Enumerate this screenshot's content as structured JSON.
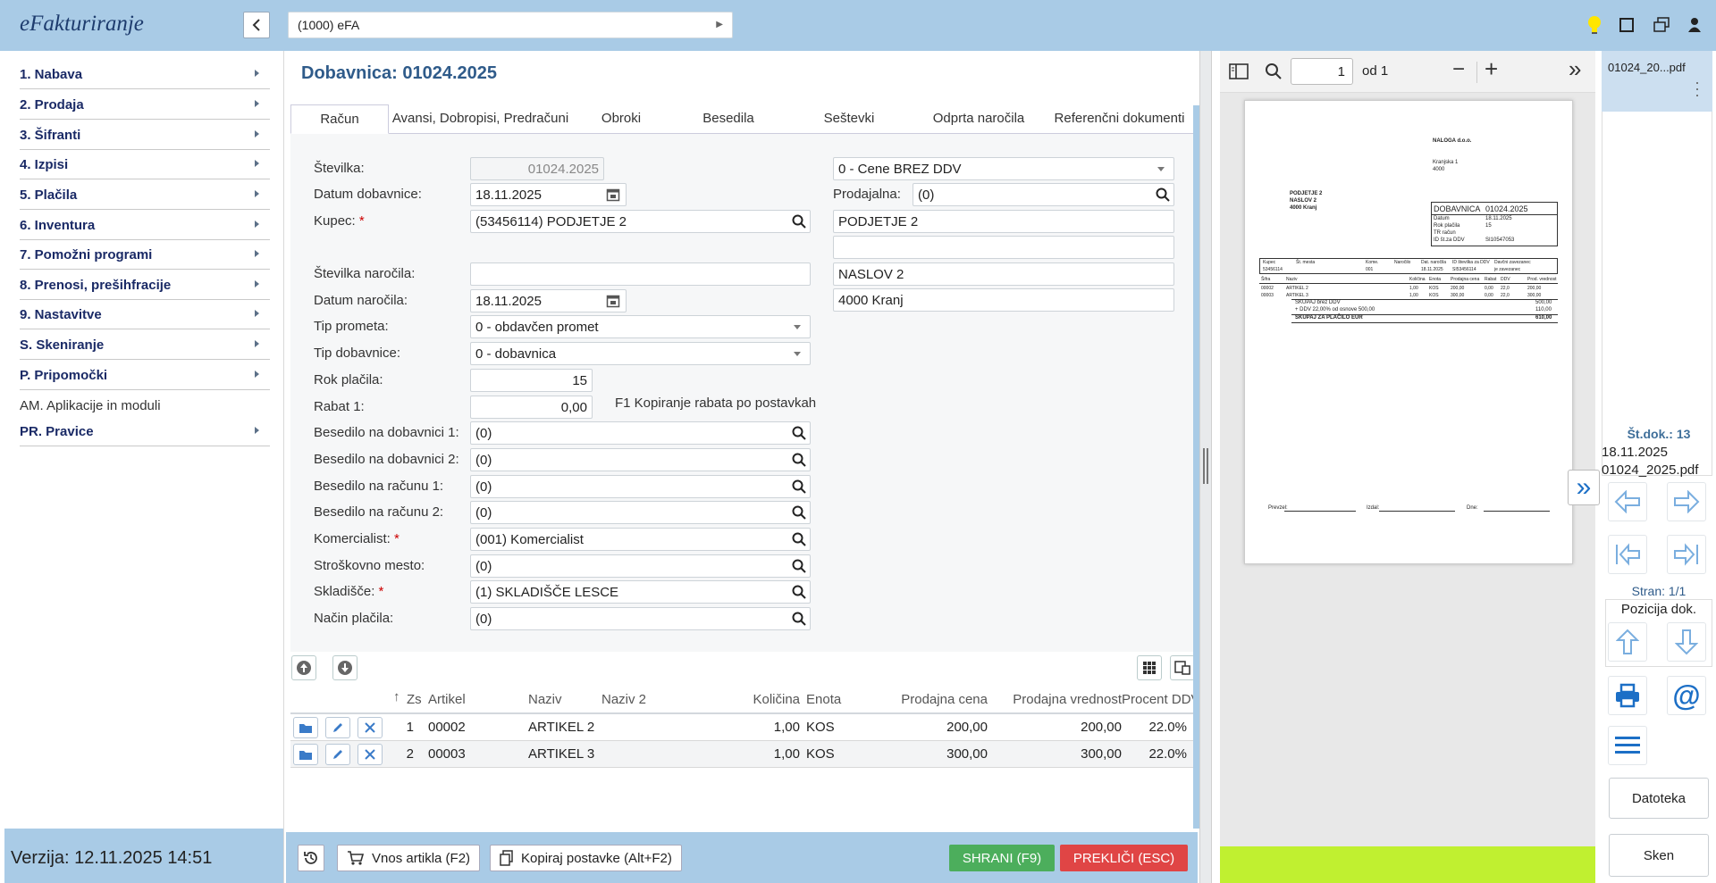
{
  "app": {
    "title": "eFakturiranje",
    "company": "(1000) eFA",
    "version": "Verzija: 12.11.2025 14:51"
  },
  "menu": [
    {
      "label": "1. Nabava",
      "arrow": true
    },
    {
      "label": "2. Prodaja",
      "arrow": true
    },
    {
      "label": "3. Šifranti",
      "arrow": true
    },
    {
      "label": "4. Izpisi",
      "arrow": true
    },
    {
      "label": "5. Plačila",
      "arrow": true
    },
    {
      "label": "6. Inventura",
      "arrow": true
    },
    {
      "label": "7. Pomožni programi",
      "arrow": true
    },
    {
      "label": "8. Prenosi, preših​fracije",
      "arrow": true
    },
    {
      "label": "9. Nastavitve",
      "arrow": true
    },
    {
      "label": "S. Skeniranje",
      "arrow": true
    },
    {
      "label": "P. Pripomočki",
      "arrow": true
    },
    {
      "label": "AM. Aplikacije in moduli",
      "arrow": false
    },
    {
      "label": "PR. Pravice",
      "arrow": true
    }
  ],
  "doc": {
    "title": "Dobavnica: 01024.2025"
  },
  "tabs": [
    "Račun",
    "Avansi, Dobropisi, Predračuni",
    "Obroki",
    "Besedila",
    "Seštevki",
    "Odprta naročila",
    "Referenčni dokumenti"
  ],
  "form": {
    "stevilka_label": "Številka:",
    "stevilka": "01024.2025",
    "datum_dob_label": "Datum dobavnice:",
    "datum_dob": "18.11.2025",
    "kupec_label": "Kupec:",
    "kupec": "(53456114) PODJETJE 2",
    "st_narocila_label": "Številka naročila:",
    "st_narocila": "",
    "datum_nar_label": "Datum naročila:",
    "datum_nar": "18.11.2025",
    "tip_prometa_label": "Tip prometa:",
    "tip_prometa": "0 - obdavčen promet",
    "tip_dob_label": "Tip dobavnice:",
    "tip_dob": "0 - dobavnica",
    "rok_label": "Rok plačila:",
    "rok": "15",
    "rabat_label": "Rabat 1:",
    "rabat": "0,00",
    "rabat_hint": "F1 Kopiranje rabata po postavkah",
    "bes_dob1_label": "Besedilo na dobavnici 1:",
    "bes_dob1": "(0)",
    "bes_dob2_label": "Besedilo na dobavnici 2:",
    "bes_dob2": "(0)",
    "bes_rac1_label": "Besedilo na računu 1:",
    "bes_rac1": "(0)",
    "bes_rac2_label": "Besedilo na računu 2:",
    "bes_rac2": "(0)",
    "komerc_label": "Komercialist:",
    "komerc": "(001)  Komercialist",
    "strosk_label": "Stroškovno mesto:",
    "strosk": "(0)",
    "sklad_label": "Skladišče:",
    "sklad": "(1) SKLADIŠČE LESCE",
    "nacin_label": "Način plačila:",
    "nacin": "(0)",
    "cene": "0 - Cene BREZ DDV",
    "prodajalna_label": "Prodajalna:",
    "prodajalna": "(0)",
    "naziv1": "PODJETJE 2",
    "naziv2": "",
    "naslov": "NASLOV 2",
    "posta": "4000 Kranj"
  },
  "grid": {
    "headers": [
      "Zs",
      "Artikel",
      "Naziv",
      "Naziv 2",
      "Količina",
      "Enota",
      "Prodajna cena",
      "Prodajna vrednost",
      "Procent DDV"
    ],
    "rows": [
      {
        "zs": "1",
        "artikel": "00002",
        "naziv": "ARTIKEL 2",
        "naziv2": "",
        "kolicina": "1,00",
        "enota": "KOS",
        "cena": "200,00",
        "vrednost": "200,00",
        "ddv": "22.0%"
      },
      {
        "zs": "2",
        "artikel": "00003",
        "naziv": "ARTIKEL 3",
        "naziv2": "",
        "kolicina": "1,00",
        "enota": "KOS",
        "cena": "300,00",
        "vrednost": "300,00",
        "ddv": "22.0%"
      }
    ]
  },
  "buttons": {
    "vnos": "Vnos artikla (F2)",
    "kopiraj": "Kopiraj postavke (Alt+F2)",
    "shrani": "SHRANI (F9)",
    "preklici": "PREKLIČI (ESC)"
  },
  "pdf": {
    "page": "1",
    "of": "od 1",
    "preview": {
      "naloga": "NALOGA d.o.o.",
      "naloga_addr1": "Kranjska 1",
      "naloga_addr2": "4000",
      "kupec1": "PODJETJE 2",
      "kupec2": "NASLOV 2",
      "kupec3": "4000 Kranj",
      "dob": "DOBAVNICA",
      "dobnum": "01024.2025",
      "datum_l": "Datum",
      "datum_v": "18.11.2025",
      "rok_l": "Rok plačila",
      "rok_v": "15",
      "tr_l": "TR račun",
      "id_l": "ID št.za DDV",
      "id_v": "SI10547053",
      "h1": [
        "Kupec",
        "Št. mesta",
        "Kome.",
        "Naročilo",
        "Dat. naročila",
        "ID številka za DDV",
        "Davčni zavezanec"
      ],
      "h1v": [
        "53456114",
        "",
        "001",
        "",
        "18.11.2025",
        "SI53456114",
        "je zavezanec"
      ],
      "h2": [
        "Šifra",
        "Naziv",
        "Količina",
        "Enota",
        "Prodajna cena",
        "Rabat",
        "DDV",
        "Prod. vrednost"
      ],
      "r1": [
        "00002",
        "ARTIKEL 2",
        "1,00",
        "KOS",
        "200,00",
        "0,00",
        "22,0",
        "200,00"
      ],
      "r2": [
        "00003",
        "ARTIKEL 3",
        "1,00",
        "KOS",
        "300,00",
        "0,00",
        "22,0",
        "300,00"
      ],
      "s1": "SKUPAJ brez DDV",
      "s1v": "500,00",
      "s2": "+ DDV 22,00% od osnove 500,00",
      "s2v": "110,00",
      "s3": "SKUPAJ ZA PLAČILO EUR",
      "s3v": "610,00",
      "sig1": "Prevzel:",
      "sig2": "Izdal:",
      "sig3": "Dne:"
    }
  },
  "thumb": {
    "name": "01024_20...pdf",
    "stdok": "Št.dok.: 13",
    "date": "18.11.2025",
    "file": "01024_2025.pdf",
    "stran": "Stran: 1/1",
    "pozicija": "Pozicija dok.",
    "datoteka": "Datoteka",
    "sken": "Sken"
  }
}
